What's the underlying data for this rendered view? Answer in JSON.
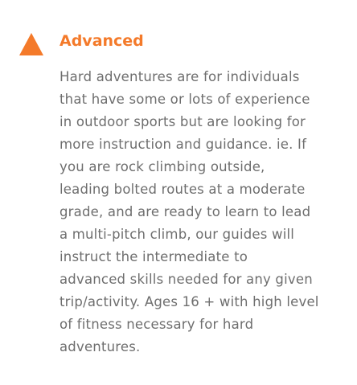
{
  "level": {
    "icon": "triangle-icon",
    "title": "Advanced",
    "description_lines": [
      "Hard adventures are for individuals",
      "that have some or lots of experience",
      "in outdoor sports but are looking for",
      "more instruction and guidance. ie. If",
      "you are rock climbing outside,",
      "leading bolted routes at a moderate",
      "grade, and are ready to learn to lead",
      "a multi-pitch climb, our guides will",
      "instruct the intermediate to",
      "advanced skills needed for any given",
      "trip/activity. Ages 16 + with high level",
      "of fitness necessary for hard",
      "adventures."
    ]
  },
  "colors": {
    "accent": "#F47A2A",
    "text": "#6E6E6E"
  }
}
